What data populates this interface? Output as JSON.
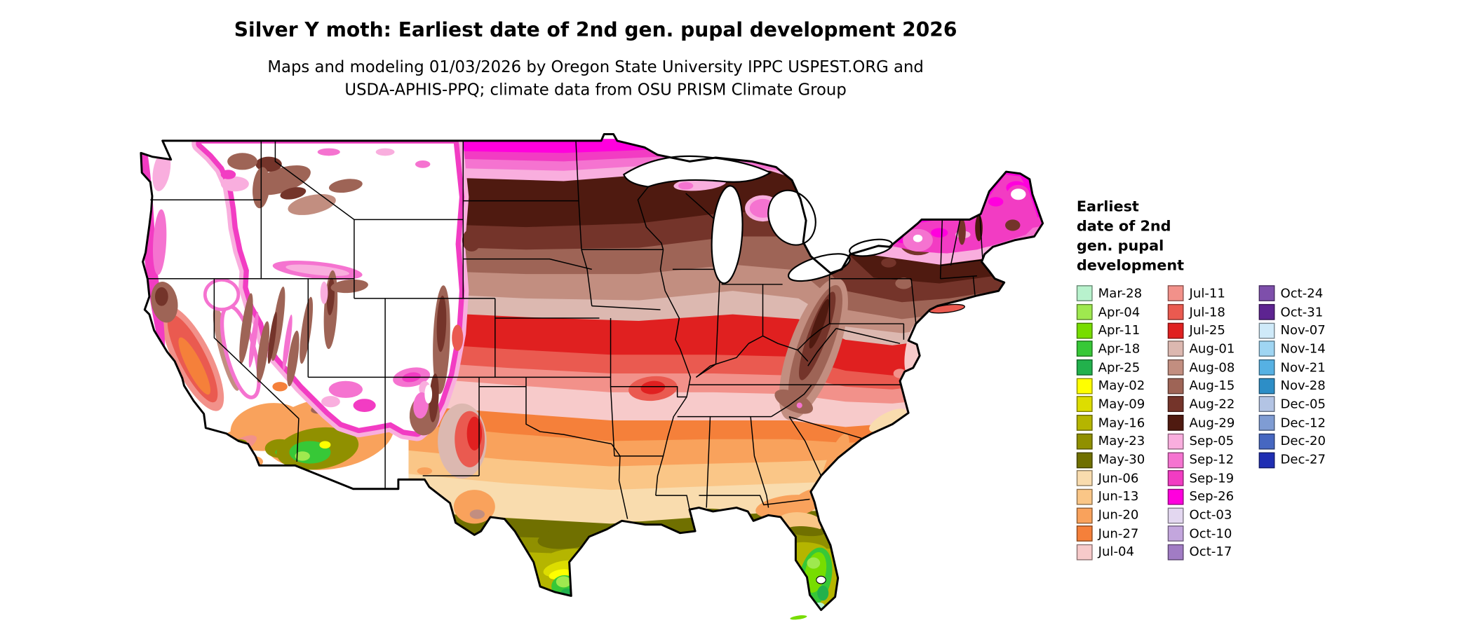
{
  "title": "Silver Y moth: Earliest date of 2nd gen. pupal development 2026",
  "subtitle": {
    "line1": "Maps and modeling 01/03/2026 by Oregon State University IPPC USPEST.ORG and",
    "line2": "USDA-APHIS-PPQ; climate data from OSU PRISM Climate Group"
  },
  "legend": {
    "title_lines": [
      "Earliest",
      "date of 2nd",
      "gen. pupal",
      "development"
    ],
    "columns": [
      [
        {
          "label": "Mar-28",
          "color": "#b8f2cd"
        },
        {
          "label": "Apr-04",
          "color": "#9fe94f"
        },
        {
          "label": "Apr-11",
          "color": "#77dd00"
        },
        {
          "label": "Apr-18",
          "color": "#37c837"
        },
        {
          "label": "Apr-25",
          "color": "#22b14c"
        },
        {
          "label": "May-02",
          "color": "#ffff00"
        },
        {
          "label": "May-09",
          "color": "#dddd00"
        },
        {
          "label": "May-16",
          "color": "#b5b500"
        },
        {
          "label": "May-23",
          "color": "#909000"
        },
        {
          "label": "May-30",
          "color": "#707000"
        },
        {
          "label": "Jun-06",
          "color": "#f9dcae"
        },
        {
          "label": "Jun-13",
          "color": "#fac687"
        },
        {
          "label": "Jun-20",
          "color": "#f9a25c"
        },
        {
          "label": "Jun-27",
          "color": "#f5803a"
        },
        {
          "label": "Jul-04",
          "color": "#f7caca"
        }
      ],
      [
        {
          "label": "Jul-11",
          "color": "#f2918a"
        },
        {
          "label": "Jul-18",
          "color": "#ea5a50"
        },
        {
          "label": "Jul-25",
          "color": "#e02020"
        },
        {
          "label": "Aug-01",
          "color": "#dcb8b0"
        },
        {
          "label": "Aug-08",
          "color": "#c28e80"
        },
        {
          "label": "Aug-15",
          "color": "#9e6456"
        },
        {
          "label": "Aug-22",
          "color": "#74342a"
        },
        {
          "label": "Aug-29",
          "color": "#4f1a10"
        },
        {
          "label": "Sep-05",
          "color": "#f9aede"
        },
        {
          "label": "Sep-12",
          "color": "#f573d0"
        },
        {
          "label": "Sep-19",
          "color": "#f23cc3"
        },
        {
          "label": "Sep-26",
          "color": "#ff00dd"
        },
        {
          "label": "Oct-03",
          "color": "#e3d7f0"
        },
        {
          "label": "Oct-10",
          "color": "#c3a6dd"
        },
        {
          "label": "Oct-17",
          "color": "#a17cc4"
        }
      ],
      [
        {
          "label": "Oct-24",
          "color": "#7e4fab"
        },
        {
          "label": "Oct-31",
          "color": "#5d2491"
        },
        {
          "label": "Nov-07",
          "color": "#cfeaf9"
        },
        {
          "label": "Nov-14",
          "color": "#9fd5f2"
        },
        {
          "label": "Nov-21",
          "color": "#56b1e3"
        },
        {
          "label": "Nov-28",
          "color": "#2d8ec7"
        },
        {
          "label": "Dec-05",
          "color": "#b3c4e4"
        },
        {
          "label": "Dec-12",
          "color": "#7f9cd3"
        },
        {
          "label": "Dec-20",
          "color": "#4667c1"
        },
        {
          "label": "Dec-27",
          "color": "#1f2eb3"
        }
      ]
    ]
  },
  "map": {
    "region": "Continental United States",
    "no_data_color": "#ffffff",
    "border_color": "#000000"
  },
  "chart_data": {
    "type": "choropleth-map",
    "title": "Silver Y moth: Earliest date of 2nd gen. pupal development 2026",
    "variable": "Earliest date of 2nd gen. pupal development",
    "scale_labels": [
      "Mar-28",
      "Apr-04",
      "Apr-11",
      "Apr-18",
      "Apr-25",
      "May-02",
      "May-09",
      "May-16",
      "May-23",
      "May-30",
      "Jun-06",
      "Jun-13",
      "Jun-20",
      "Jun-27",
      "Jul-04",
      "Jul-11",
      "Jul-18",
      "Jul-25",
      "Aug-01",
      "Aug-08",
      "Aug-15",
      "Aug-22",
      "Aug-29",
      "Sep-05",
      "Sep-12",
      "Sep-19",
      "Sep-26",
      "Oct-03",
      "Oct-10",
      "Oct-17",
      "Oct-24",
      "Oct-31",
      "Nov-07",
      "Nov-14",
      "Nov-21",
      "Nov-28",
      "Dec-05",
      "Dec-12",
      "Dec-20",
      "Dec-27"
    ],
    "regional_pattern": {
      "south_florida": "Apr-11 to Apr-25 (greens)",
      "south_texas_tip": "Apr-18 to May-16 (greens and yellows)",
      "gulf_coast": "May-30 to Jun-13 (olive to tan)",
      "texas_and_deep_south": "Jun-06 to Jun-27 (tans to orange)",
      "mid_south_ok_ar_tn": "Jul-04 to Jul-18 (pale pink to salmon)",
      "central_plains_ohio_valley_virginia": "Jul-25 to Aug-08 (red to light brown)",
      "upper_midwest_great_lakes_northeast": "Aug-15 to Aug-29 (browns)",
      "northern_border_new_england_mountain_fringes": "Sep-05 to Sep-26 (pinks to magenta)",
      "interior_mountain_west": "no completion (white)"
    }
  }
}
